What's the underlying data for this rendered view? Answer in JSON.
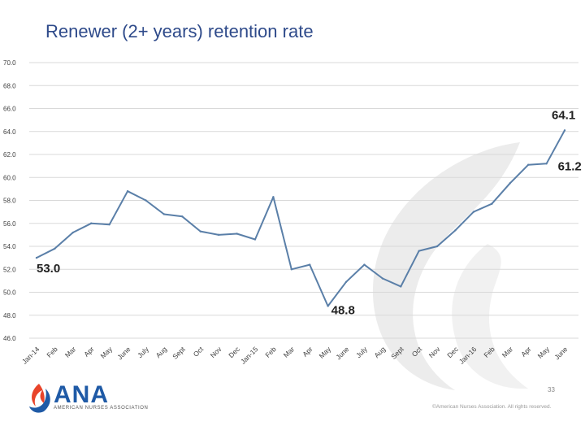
{
  "slide": {
    "title": "Renewer (2+ years) retention rate",
    "page_number": "33",
    "logo_text": "ANA",
    "logo_subtitle": "AMERICAN NURSES ASSOCIATION",
    "copyright": "©American Nurses Association. All rights reserved."
  },
  "colors": {
    "title": "#2e4a8a",
    "line": "#5a7fa8",
    "grid": "#d9d9d9",
    "watermark": "#e6e6e6",
    "logo_blue": "#1f5aa6",
    "logo_red": "#e8442a"
  },
  "icons": {
    "logo": "ana-flame-logo-icon",
    "watermark": "ana-flame-watermark-icon"
  },
  "chart_data": {
    "type": "line",
    "title": "",
    "xlabel": "",
    "ylabel": "",
    "ylim": [
      46.0,
      70.0
    ],
    "yticks": [
      "46.0",
      "48.0",
      "50.0",
      "52.0",
      "54.0",
      "56.0",
      "58.0",
      "60.0",
      "62.0",
      "64.0",
      "66.0",
      "68.0",
      "70.0"
    ],
    "grid": true,
    "legend": "none",
    "categories": [
      "Jan-14",
      "Feb",
      "Mar",
      "Apr",
      "May",
      "June",
      "July",
      "Aug",
      "Sept",
      "Oct",
      "Nov",
      "Dec",
      "Jan-15",
      "Feb",
      "Mar",
      "Apr",
      "May",
      "June",
      "July",
      "Aug",
      "Sept",
      "Oct",
      "Nov",
      "Dec",
      "Jan-16",
      "Feb",
      "Mar",
      "Apr",
      "May",
      "June"
    ],
    "series": [
      {
        "values": [
          53.0,
          53.8,
          55.2,
          56.0,
          55.9,
          58.8,
          58.0,
          56.8,
          56.6,
          55.3,
          55.0,
          55.1,
          54.6,
          58.3,
          52.0,
          52.4,
          48.8,
          50.9,
          52.4,
          51.2,
          50.5,
          53.6,
          54.0,
          55.4,
          57.0,
          57.7,
          59.5,
          61.1,
          61.2,
          64.1
        ]
      }
    ],
    "annotations": [
      {
        "label": "53.0",
        "index": 0
      },
      {
        "label": "48.8",
        "index": 16
      },
      {
        "label": "61.2",
        "index": 28
      },
      {
        "label": "64.1",
        "index": 29
      }
    ]
  }
}
